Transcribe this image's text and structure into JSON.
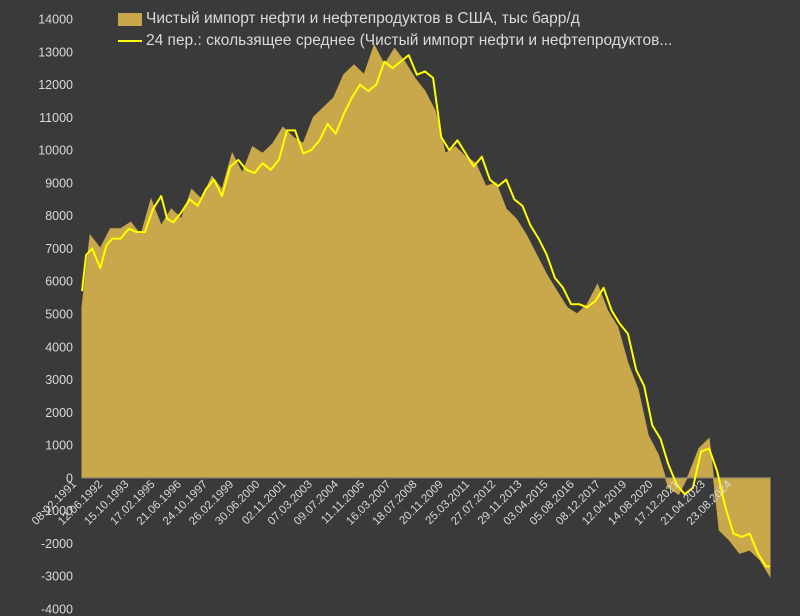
{
  "colors": {
    "background": "#3a3a3a",
    "area": "#c8a84a",
    "line": "#ffff00",
    "text": "#d9d9d9",
    "axis": "#808080"
  },
  "legend": {
    "series1": "Чистый импорт нефти и нефтепродуктов в США, тыс барр/д",
    "series2": "24 пер.: скользящее среднее (Чистый импорт нефти и нефтепродуктов..."
  },
  "chart_data": {
    "type": "area",
    "title": "",
    "xlabel": "",
    "ylabel": "",
    "ylim": [
      -4000,
      14000
    ],
    "ytick_step": 1000,
    "grid": false,
    "legend_position": "top-left",
    "x_tick_labels": [
      "08.02.1991",
      "12.06.1992",
      "15.10.1993",
      "17.02.1995",
      "21.06.1996",
      "24.10.1997",
      "26.02.1999",
      "30.06.2000",
      "02.11.2001",
      "07.03.2003",
      "09.07.2004",
      "11.11.2005",
      "16.03.2007",
      "18.07.2008",
      "20.11.2009",
      "25.03.2011",
      "27.07.2012",
      "29.11.2013",
      "03.04.2015",
      "05.08.2016",
      "08.12.2017",
      "12.04.2019",
      "14.08.2020",
      "17.12.2021",
      "21.04.2023",
      "23.08.2024"
    ],
    "series": [
      {
        "name": "Чистый импорт нефти и нефтепродуктов в США, тыс барр/д",
        "type": "area",
        "x": [
          1991.1,
          1991.5,
          1992.0,
          1992.5,
          1993.0,
          1993.5,
          1994.0,
          1994.5,
          1995.0,
          1995.5,
          1996.0,
          1996.5,
          1997.0,
          1997.5,
          1998.0,
          1998.5,
          1999.0,
          1999.5,
          2000.0,
          2000.5,
          2001.0,
          2001.5,
          2002.0,
          2002.5,
          2003.0,
          2003.5,
          2004.0,
          2004.5,
          2005.0,
          2005.5,
          2006.0,
          2006.5,
          2007.0,
          2007.5,
          2008.0,
          2008.5,
          2009.0,
          2009.5,
          2010.0,
          2010.5,
          2011.0,
          2011.5,
          2012.0,
          2012.5,
          2013.0,
          2013.5,
          2014.0,
          2014.5,
          2015.0,
          2015.5,
          2016.0,
          2016.5,
          2017.0,
          2017.5,
          2018.0,
          2018.5,
          2019.0,
          2019.5,
          2020.0,
          2020.5,
          2021.0,
          2021.5,
          2022.0,
          2022.5,
          2023.0,
          2023.5,
          2024.0,
          2024.5,
          2025.0
        ],
        "values": [
          5200,
          7400,
          7000,
          7600,
          7600,
          7800,
          7400,
          8500,
          7700,
          8200,
          7900,
          8800,
          8500,
          9200,
          8800,
          9900,
          9300,
          10100,
          9900,
          10200,
          10700,
          10400,
          10200,
          11000,
          11300,
          11600,
          12300,
          12600,
          12300,
          13200,
          12600,
          13100,
          12700,
          12200,
          11800,
          11200,
          9900,
          10100,
          9800,
          9600,
          8900,
          9000,
          8200,
          7900,
          7400,
          6800,
          6200,
          5700,
          5200,
          5000,
          5300,
          5900,
          5100,
          4600,
          3500,
          2700,
          1300,
          700,
          -300,
          -500,
          100,
          900,
          1200,
          -1600,
          -1900,
          -2300,
          -2200,
          -2500,
          -3000
        ]
      },
      {
        "name": "24 пер.: скользящее среднее (Чистый импорт нефти и нефтепродуктов...",
        "type": "line",
        "x": [
          1991.1,
          1991.3,
          1991.6,
          1992.0,
          1992.3,
          1992.6,
          1993.0,
          1993.4,
          1993.8,
          1994.2,
          1994.6,
          1995.0,
          1995.3,
          1995.6,
          1996.0,
          1996.4,
          1996.8,
          1997.2,
          1997.6,
          1998.0,
          1998.4,
          1998.8,
          1999.2,
          1999.6,
          2000.0,
          2000.4,
          2000.8,
          2001.2,
          2001.6,
          2002.0,
          2002.4,
          2002.8,
          2003.2,
          2003.6,
          2004.0,
          2004.4,
          2004.8,
          2005.2,
          2005.6,
          2006.0,
          2006.4,
          2006.8,
          2007.2,
          2007.6,
          2008.0,
          2008.4,
          2008.8,
          2009.2,
          2009.6,
          2010.0,
          2010.4,
          2010.8,
          2011.2,
          2011.6,
          2012.0,
          2012.4,
          2012.8,
          2013.2,
          2013.6,
          2014.0,
          2014.4,
          2014.8,
          2015.2,
          2015.6,
          2016.0,
          2016.4,
          2016.8,
          2017.2,
          2017.6,
          2018.0,
          2018.4,
          2018.8,
          2019.2,
          2019.6,
          2020.0,
          2020.4,
          2020.8,
          2021.2,
          2021.6,
          2022.0,
          2022.4,
          2022.8,
          2023.2,
          2023.6,
          2024.0,
          2024.4,
          2024.8,
          2025.0
        ],
        "values": [
          5700,
          6800,
          7000,
          6400,
          7100,
          7300,
          7300,
          7600,
          7500,
          7500,
          8200,
          8600,
          7900,
          7800,
          8100,
          8500,
          8300,
          8800,
          9100,
          8600,
          9500,
          9700,
          9400,
          9300,
          9600,
          9400,
          9700,
          10600,
          10600,
          9900,
          10000,
          10300,
          10800,
          10500,
          11100,
          11600,
          12000,
          11800,
          12000,
          12700,
          12500,
          12700,
          12900,
          12300,
          12400,
          12200,
          10400,
          10000,
          10300,
          9900,
          9500,
          9800,
          9100,
          8900,
          9100,
          8500,
          8300,
          7700,
          7300,
          6800,
          6100,
          5800,
          5300,
          5300,
          5200,
          5400,
          5800,
          5100,
          4700,
          4400,
          3300,
          2800,
          1600,
          1200,
          400,
          -200,
          -500,
          -300,
          800,
          900,
          200,
          -900,
          -1700,
          -1800,
          -1700,
          -2300,
          -2700,
          -2700
        ]
      }
    ]
  }
}
